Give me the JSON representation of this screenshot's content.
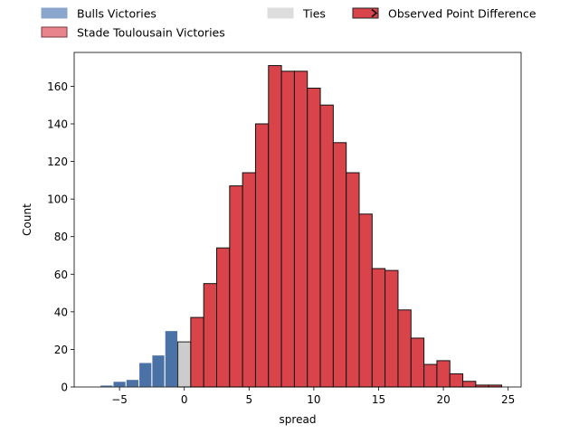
{
  "chart_data": {
    "type": "bar",
    "title": "",
    "xlabel": "spread",
    "ylabel": "Count",
    "xlim": [
      -8.5,
      26
    ],
    "ylim": [
      0,
      178
    ],
    "xticks": [
      -5,
      0,
      5,
      10,
      15,
      20,
      25
    ],
    "xtick_labels": [
      "−5",
      "0",
      "5",
      "10",
      "15",
      "20",
      "25"
    ],
    "yticks": [
      0,
      20,
      40,
      60,
      80,
      100,
      120,
      140,
      160
    ],
    "ytick_labels": [
      "0",
      "20",
      "40",
      "60",
      "80",
      "100",
      "120",
      "140",
      "160"
    ],
    "bin_width": 1,
    "legend": [
      {
        "label": "Bulls Victories",
        "color": "#8aa6cc",
        "edge": "#8aa6cc"
      },
      {
        "label": "Stade Toulousain Victories",
        "color": "#e8858c",
        "edge": "#7a3a3f"
      },
      {
        "label": "Ties",
        "color": "#dddddd",
        "edge": "#dddddd"
      },
      {
        "label": "Observed Point Difference",
        "color": "#d9444b",
        "edge": "#222222",
        "marker": true
      }
    ],
    "series": [
      {
        "name": "Bulls Victories",
        "color": "#4a72a6",
        "edge": "#ffffff",
        "bins": [
          {
            "x0": -6.5,
            "x1": -5.5,
            "value": 1
          },
          {
            "x0": -5.5,
            "x1": -4.5,
            "value": 3
          },
          {
            "x0": -4.5,
            "x1": -3.5,
            "value": 4
          },
          {
            "x0": -3.5,
            "x1": -2.5,
            "value": 13
          },
          {
            "x0": -2.5,
            "x1": -1.5,
            "value": 17
          },
          {
            "x0": -1.5,
            "x1": -0.5,
            "value": 30
          }
        ]
      },
      {
        "name": "Ties",
        "color": "#cccccc",
        "edge": "#222222",
        "bins": [
          {
            "x0": -0.5,
            "x1": 0.5,
            "value": 24
          }
        ]
      },
      {
        "name": "Stade Toulousain Victories",
        "color": "#d9444b",
        "edge": "#111111",
        "bins": [
          {
            "x0": 0.5,
            "x1": 1.5,
            "value": 37
          },
          {
            "x0": 1.5,
            "x1": 2.5,
            "value": 55
          },
          {
            "x0": 2.5,
            "x1": 3.5,
            "value": 74
          },
          {
            "x0": 3.5,
            "x1": 4.5,
            "value": 107
          },
          {
            "x0": 4.5,
            "x1": 5.5,
            "value": 114
          },
          {
            "x0": 5.5,
            "x1": 6.5,
            "value": 140
          },
          {
            "x0": 6.5,
            "x1": 7.5,
            "value": 171
          },
          {
            "x0": 7.5,
            "x1": 8.5,
            "value": 168
          },
          {
            "x0": 8.5,
            "x1": 9.5,
            "value": 168
          },
          {
            "x0": 9.5,
            "x1": 10.5,
            "value": 159
          },
          {
            "x0": 10.5,
            "x1": 11.5,
            "value": 150
          },
          {
            "x0": 11.5,
            "x1": 12.5,
            "value": 130
          },
          {
            "x0": 12.5,
            "x1": 13.5,
            "value": 114
          },
          {
            "x0": 13.5,
            "x1": 14.5,
            "value": 92
          },
          {
            "x0": 14.5,
            "x1": 15.5,
            "value": 63
          },
          {
            "x0": 15.5,
            "x1": 16.5,
            "value": 62
          },
          {
            "x0": 16.5,
            "x1": 17.5,
            "value": 41
          },
          {
            "x0": 17.5,
            "x1": 18.5,
            "value": 26
          },
          {
            "x0": 18.5,
            "x1": 19.5,
            "value": 12
          },
          {
            "x0": 19.5,
            "x1": 20.5,
            "value": 14
          },
          {
            "x0": 20.5,
            "x1": 21.5,
            "value": 7
          },
          {
            "x0": 21.5,
            "x1": 22.5,
            "value": 3
          },
          {
            "x0": 22.5,
            "x1": 23.5,
            "value": 1
          },
          {
            "x0": 23.5,
            "x1": 24.5,
            "value": 1
          }
        ]
      }
    ]
  }
}
